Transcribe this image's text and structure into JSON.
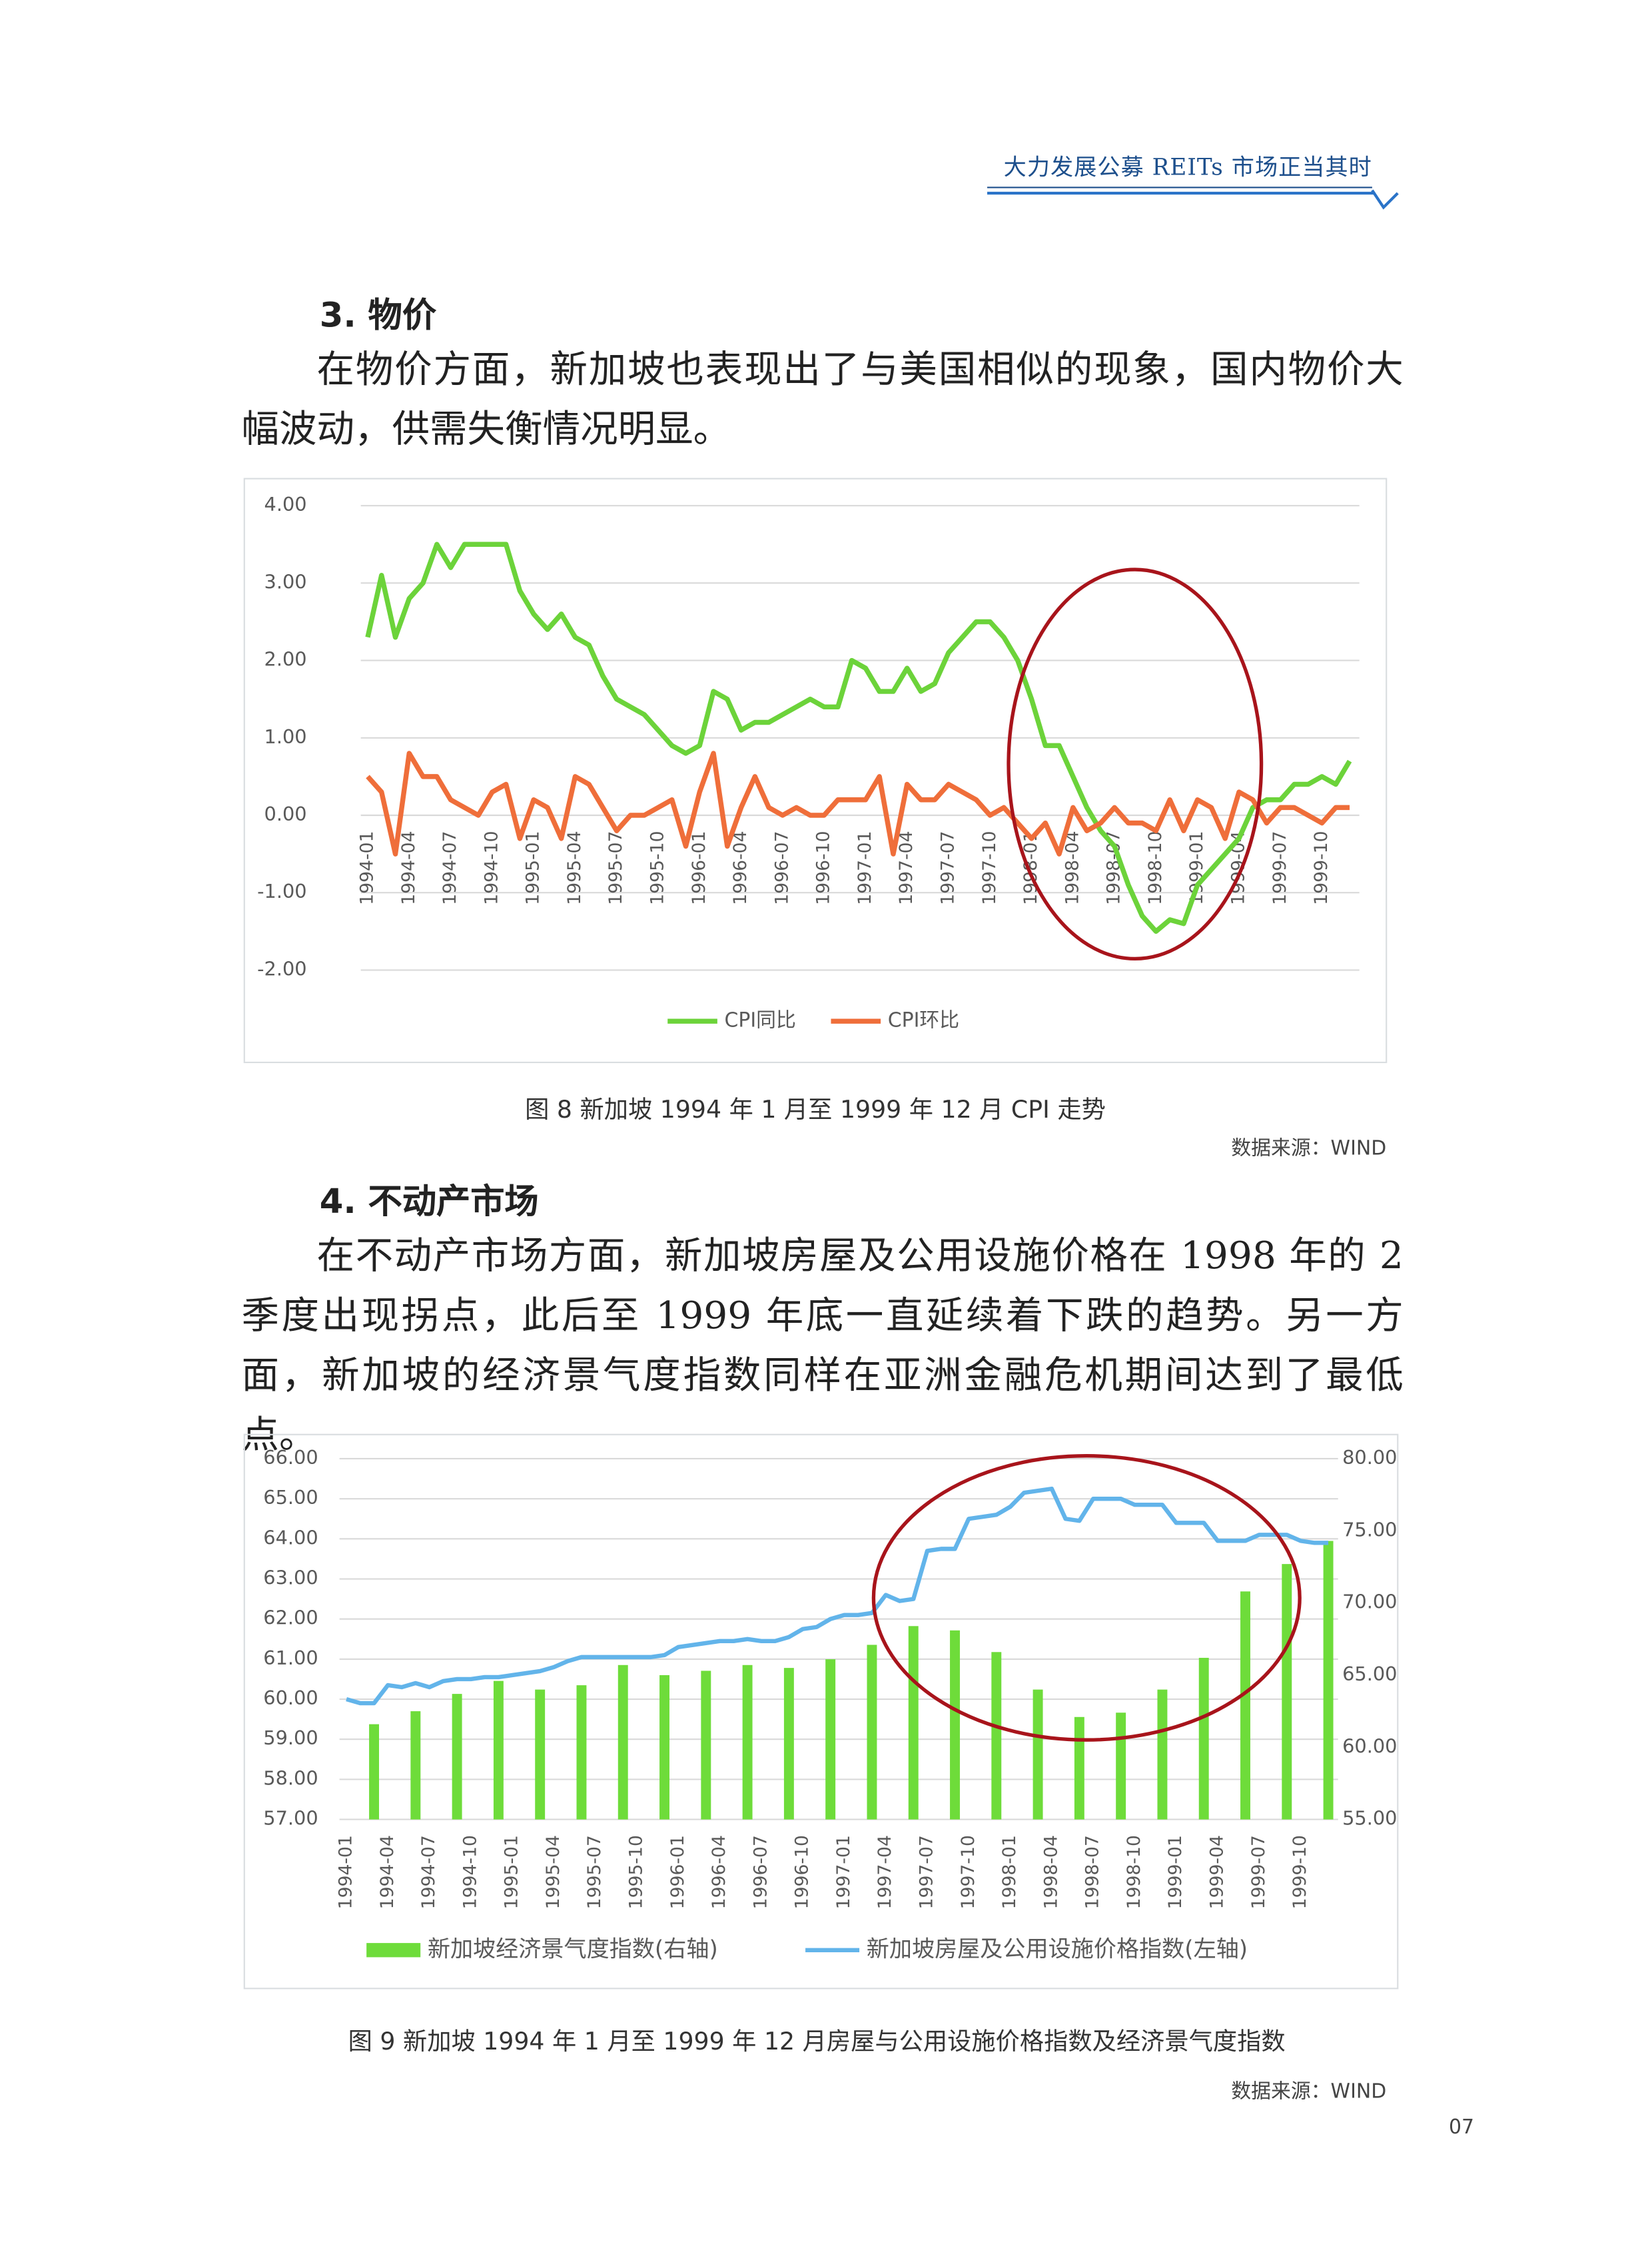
{
  "header": {
    "title": "大力发展公募 REITs 市场正当其时"
  },
  "sections": [
    {
      "heading": "3. 物价",
      "paragraph": "在物价方面，新加坡也表现出了与美国相似的现象，国内物价大幅波动，供需失衡情况明显。"
    },
    {
      "heading": "4. 不动产市场",
      "paragraph": "在不动产市场方面，新加坡房屋及公用设施价格在 1998 年的 2 季度出现拐点，此后至 1999 年底一直延续着下跌的趋势。另一方面，新加坡的经济景气度指数同样在亚洲金融危机期间达到了最低点。"
    }
  ],
  "figures": [
    {
      "caption": "图 8 新加坡 1994 年 1 月至 1999 年 12 月 CPI 走势",
      "source": "数据来源：WIND"
    },
    {
      "caption": "图 9 新加坡 1994 年 1 月至 1999 年 12 月房屋与公用设施价格指数及经济景气度指数",
      "source": "数据来源：WIND"
    }
  ],
  "page_number": "07",
  "chart_data": [
    {
      "type": "line",
      "grid": true,
      "categories": [
        "1994-01",
        null,
        null,
        "1994-04",
        null,
        null,
        "1994-07",
        null,
        null,
        "1994-10",
        null,
        null,
        "1995-01",
        null,
        null,
        "1995-04",
        null,
        null,
        "1995-07",
        null,
        null,
        "1995-10",
        null,
        null,
        "1996-01",
        null,
        null,
        "1996-04",
        null,
        null,
        "1996-07",
        null,
        null,
        "1996-10",
        null,
        null,
        "1997-01",
        null,
        null,
        "1997-04",
        null,
        null,
        "1997-07",
        null,
        null,
        "1997-10",
        null,
        null,
        "1998-01",
        null,
        null,
        "1998-04",
        null,
        null,
        "1998-07",
        null,
        null,
        "1998-10",
        null,
        null,
        "1999-01",
        null,
        null,
        "1999-04",
        null,
        null,
        "1999-07",
        null,
        null,
        "1999-10",
        null,
        null
      ],
      "ylim": [
        -2,
        4
      ],
      "yticks": [
        {
          "value": 4,
          "label": "4.00"
        },
        {
          "value": 3,
          "label": "3.00"
        },
        {
          "value": 2,
          "label": "2.00"
        },
        {
          "value": 1,
          "label": "1.00"
        },
        {
          "value": 0,
          "label": "0.00"
        },
        {
          "value": -1,
          "label": "-1.00"
        },
        {
          "value": -2,
          "label": "-2.00"
        }
      ],
      "series": [
        {
          "name": "CPI同比",
          "color": "#6cd33a",
          "values": [
            2.3,
            3.1,
            2.3,
            2.8,
            3.0,
            3.5,
            3.2,
            3.5,
            3.5,
            3.5,
            3.5,
            2.9,
            2.6,
            2.4,
            2.6,
            2.3,
            2.2,
            1.8,
            1.5,
            1.4,
            1.3,
            1.1,
            0.9,
            0.8,
            0.9,
            1.6,
            1.5,
            1.1,
            1.2,
            1.2,
            1.3,
            1.4,
            1.5,
            1.4,
            1.4,
            2.0,
            1.9,
            1.6,
            1.6,
            1.9,
            1.6,
            1.7,
            2.1,
            2.3,
            2.5,
            2.5,
            2.3,
            2.0,
            1.5,
            0.9,
            0.9,
            0.5,
            0.1,
            -0.2,
            -0.4,
            -0.9,
            -1.3,
            -1.5,
            -1.35,
            -1.4,
            -0.9,
            -0.7,
            -0.5,
            -0.3,
            0.1,
            0.2,
            0.2,
            0.4,
            0.4,
            0.5,
            0.4,
            0.7
          ]
        },
        {
          "name": "CPI环比",
          "color": "#ef6e3a",
          "values": [
            0.5,
            0.3,
            -0.5,
            0.8,
            0.5,
            0.5,
            0.2,
            0.1,
            0.0,
            0.3,
            0.4,
            -0.3,
            0.2,
            0.1,
            -0.3,
            0.5,
            0.4,
            0.1,
            -0.2,
            0.0,
            0.0,
            0.1,
            0.2,
            -0.4,
            0.3,
            0.8,
            -0.4,
            0.1,
            0.5,
            0.1,
            0.0,
            0.1,
            0.0,
            0.0,
            0.2,
            0.2,
            0.2,
            0.5,
            -0.5,
            0.4,
            0.2,
            0.2,
            0.4,
            0.3,
            0.2,
            0.0,
            0.1,
            -0.1,
            -0.3,
            -0.1,
            -0.5,
            0.1,
            -0.2,
            -0.1,
            0.1,
            -0.1,
            -0.1,
            -0.2,
            0.2,
            -0.2,
            0.2,
            0.1,
            -0.3,
            0.3,
            0.2,
            -0.1,
            0.1,
            0.1,
            0.0,
            -0.1,
            0.1,
            0.1
          ]
        }
      ]
    },
    {
      "type": "combo",
      "grid": true,
      "categories": [
        "1994-01",
        null,
        null,
        "1994-04",
        null,
        null,
        "1994-07",
        null,
        null,
        "1994-10",
        null,
        null,
        "1995-01",
        null,
        null,
        "1995-04",
        null,
        null,
        "1995-07",
        null,
        null,
        "1995-10",
        null,
        null,
        "1996-01",
        null,
        null,
        "1996-04",
        null,
        null,
        "1996-07",
        null,
        null,
        "1996-10",
        null,
        null,
        "1997-01",
        null,
        null,
        "1997-04",
        null,
        null,
        "1997-07",
        null,
        null,
        "1997-10",
        null,
        null,
        "1998-01",
        null,
        null,
        "1998-04",
        null,
        null,
        "1998-07",
        null,
        null,
        "1998-10",
        null,
        null,
        "1999-01",
        null,
        null,
        "1999-04",
        null,
        null,
        "1999-07",
        null,
        null,
        "1999-10",
        null,
        null
      ],
      "ylim": [
        57,
        66
      ],
      "yticks": [
        {
          "value": 66,
          "label": "66.00"
        },
        {
          "value": 65,
          "label": "65.00"
        },
        {
          "value": 64,
          "label": "64.00"
        },
        {
          "value": 63,
          "label": "63.00"
        },
        {
          "value": 62,
          "label": "62.00"
        },
        {
          "value": 61,
          "label": "61.00"
        },
        {
          "value": 60,
          "label": "60.00"
        },
        {
          "value": 59,
          "label": "59.00"
        },
        {
          "value": 58,
          "label": "58.00"
        },
        {
          "value": 57,
          "label": "57.00"
        }
      ],
      "y2lim": [
        55,
        80
      ],
      "y2ticks": [
        {
          "value": 80,
          "label": "80.00"
        },
        {
          "value": 75,
          "label": "75.00"
        },
        {
          "value": 70,
          "label": "70.00"
        },
        {
          "value": 65,
          "label": "65.00"
        },
        {
          "value": 60,
          "label": "60.00"
        },
        {
          "value": 55,
          "label": "55.00"
        }
      ],
      "series": [
        {
          "name": "新加坡经济景气度指数(右轴)",
          "type": "bar",
          "axis": "y2",
          "color": "#6edc3a",
          "values": [
            null,
            null,
            61.6,
            null,
            null,
            62.5,
            null,
            null,
            63.7,
            null,
            null,
            64.6,
            null,
            null,
            64.0,
            null,
            null,
            64.3,
            null,
            null,
            65.7,
            null,
            null,
            65.0,
            null,
            null,
            65.3,
            null,
            null,
            65.7,
            null,
            null,
            65.5,
            null,
            null,
            66.1,
            null,
            null,
            67.1,
            null,
            null,
            68.4,
            null,
            null,
            68.1,
            null,
            null,
            66.6,
            null,
            null,
            64.0,
            null,
            null,
            62.1,
            null,
            null,
            62.4,
            null,
            null,
            64.0,
            null,
            null,
            66.2,
            null,
            null,
            70.8,
            null,
            null,
            72.7,
            null,
            null,
            74.3
          ]
        },
        {
          "name": "新加坡房屋及公用设施价格指数(左轴)",
          "type": "line",
          "color": "#62b4ea",
          "values": [
            60.0,
            59.9,
            59.9,
            60.35,
            60.3,
            60.4,
            60.3,
            60.45,
            60.5,
            60.5,
            60.55,
            60.55,
            60.6,
            60.65,
            60.7,
            60.8,
            60.95,
            61.05,
            61.05,
            61.05,
            61.05,
            61.05,
            61.05,
            61.1,
            61.3,
            61.35,
            61.4,
            61.45,
            61.45,
            61.5,
            61.45,
            61.45,
            61.55,
            61.75,
            61.8,
            62.0,
            62.1,
            62.1,
            62.15,
            62.6,
            62.45,
            62.5,
            63.7,
            63.75,
            63.75,
            64.5,
            64.55,
            64.6,
            64.8,
            65.15,
            65.2,
            65.25,
            64.5,
            64.45,
            65.0,
            65.0,
            65.0,
            64.85,
            64.85,
            64.85,
            64.4,
            64.4,
            64.4,
            63.95,
            63.95,
            63.95,
            64.1,
            64.1,
            64.1,
            63.95,
            63.9,
            63.9
          ]
        }
      ]
    }
  ]
}
